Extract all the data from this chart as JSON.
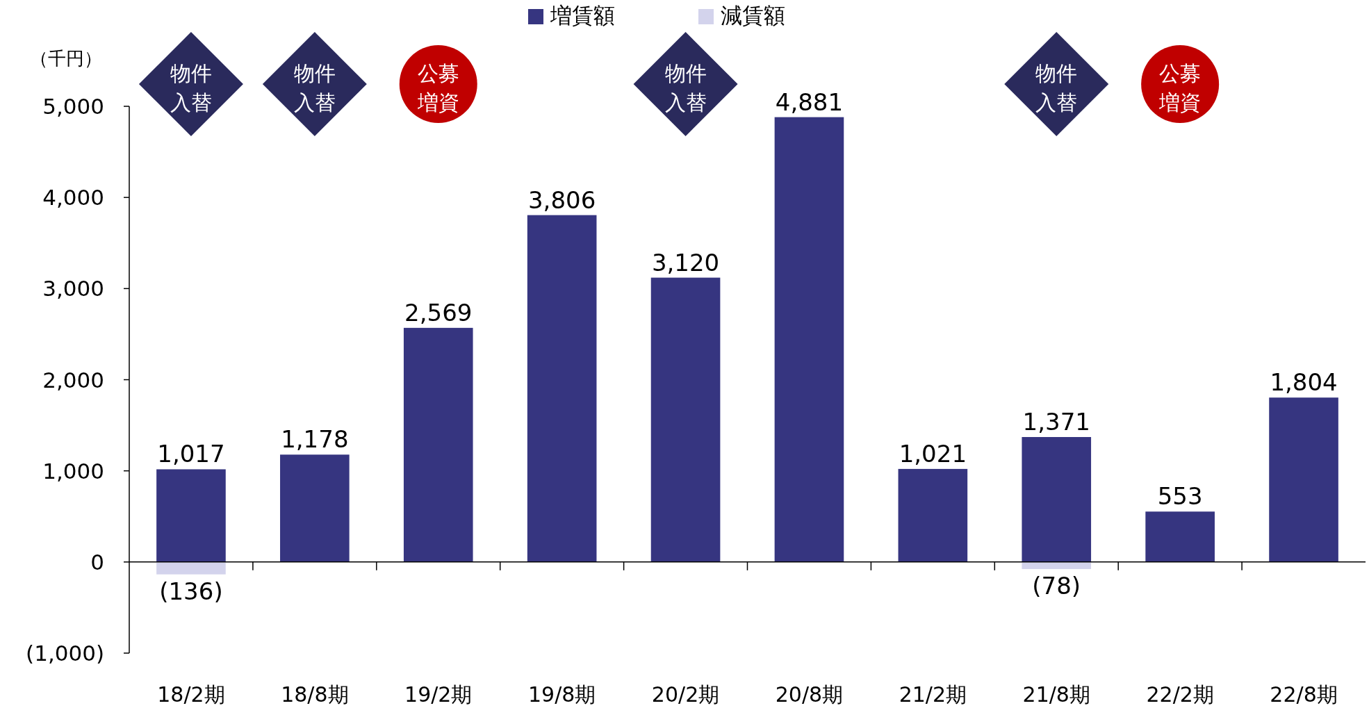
{
  "chart_data": {
    "type": "bar",
    "ylabel": "（千円）",
    "categories": [
      "18/2期",
      "18/8期",
      "19/2期",
      "19/8期",
      "20/2期",
      "20/8期",
      "21/2期",
      "21/8期",
      "22/2期",
      "22/8期"
    ],
    "series": [
      {
        "name": "増賃額",
        "color": "#363580",
        "values": [
          1017,
          1178,
          2569,
          3806,
          3120,
          4881,
          1021,
          1371,
          553,
          1804
        ],
        "value_labels": [
          "1,017",
          "1,178",
          "2,569",
          "3,806",
          "3,120",
          "4,881",
          "1,021",
          "1,371",
          "553",
          "1,804"
        ]
      },
      {
        "name": "減賃額",
        "color": "#d3d3ec",
        "values": [
          -136,
          null,
          null,
          null,
          null,
          null,
          null,
          -78,
          null,
          null
        ],
        "value_labels": [
          "(136)",
          null,
          null,
          null,
          null,
          null,
          null,
          "(78)",
          null,
          null
        ]
      }
    ],
    "ylim": [
      -1000,
      5000
    ],
    "yticks": [
      {
        "value": -1000,
        "label": "(1,000)"
      },
      0,
      {
        "value": 1000,
        "label": "1,000"
      },
      {
        "value": 2000,
        "label": "2,000"
      },
      {
        "value": 3000,
        "label": "3,000"
      },
      {
        "value": 4000,
        "label": "4,000"
      },
      {
        "value": 5000,
        "label": "5,000"
      }
    ],
    "legend": "top",
    "annotations": [
      "物件入替",
      "物件入替",
      "公募増資",
      "物件入替",
      "物件入替",
      "公募増資"
    ]
  }
}
